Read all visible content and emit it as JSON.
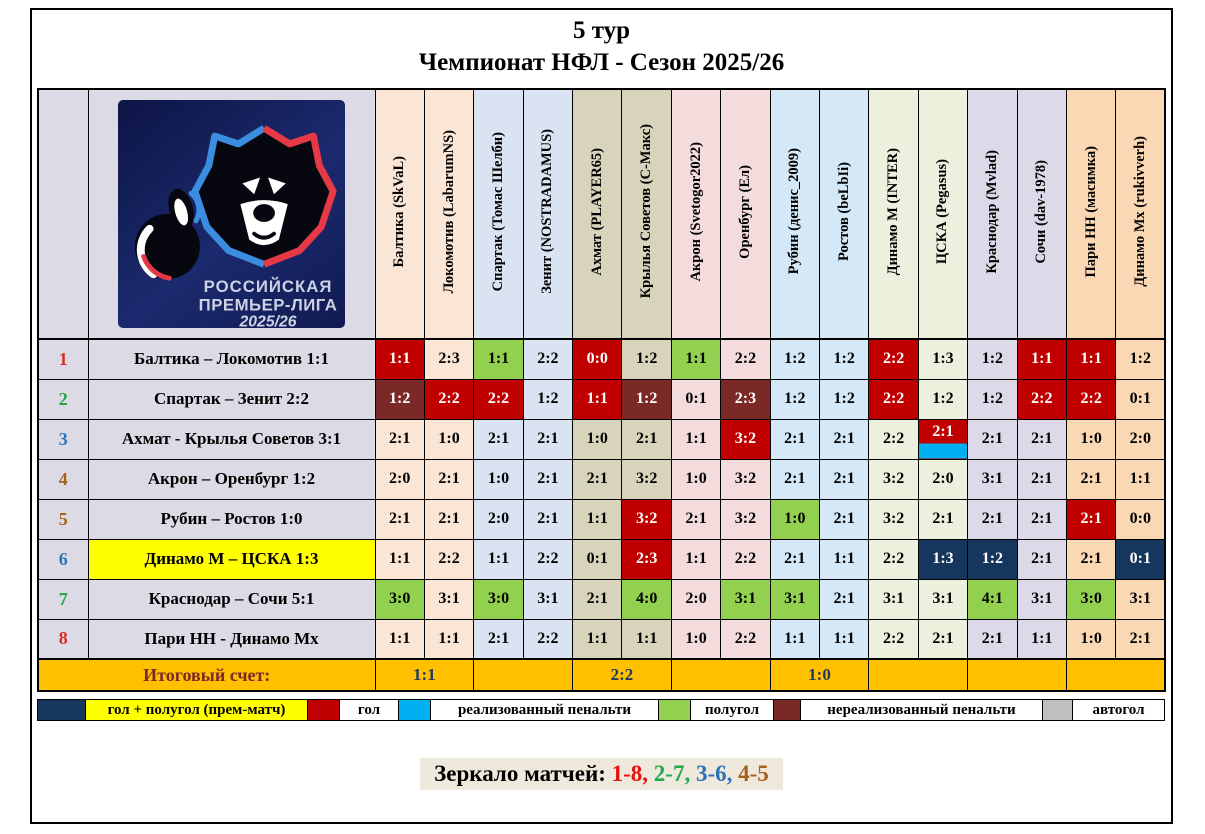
{
  "title": {
    "line1": "5 тур",
    "line2": "Чемпионат НФЛ - Сезон 2025/26"
  },
  "logo": {
    "line1": "РОССИЙСКАЯ",
    "line2": "ПРЕМЬЕР-ЛИГА",
    "line3": "2025/26"
  },
  "colors": {
    "goal_red": "#c00000",
    "halfgoal_green": "#92d050",
    "missed_penalty_maroon": "#7b2927",
    "prem_navy": "#17365d",
    "scored_penalty_cyan": "#00b0f0",
    "prem_match_yellow": "#ffff00",
    "total_row_amber": "#ffc000",
    "owngoal_gray": "#bfbfbf",
    "index_bg": "#dcdbe5"
  },
  "columns": [
    {
      "label": "Балтика (SkVaL)",
      "bg": "#fbe5d5"
    },
    {
      "label": "Локомотив (LabarumNS)",
      "bg": "#fbe5d5"
    },
    {
      "label": "Спартак (Томас Шелби)",
      "bg": "#dae3f2"
    },
    {
      "label": "Зенит (NOSTRADAMUS)",
      "bg": "#dae3f2"
    },
    {
      "label": "Ахмат (PLAYER65)",
      "bg": "#d8d4bb"
    },
    {
      "label": "Крылья Советов (С-Макс)",
      "bg": "#d8d4bb"
    },
    {
      "label": "Акрон (Svetogor2022)",
      "bg": "#f3dcdb"
    },
    {
      "label": "Оренбург (Ел)",
      "bg": "#f3dcdb"
    },
    {
      "label": "Рубин (денис_2009)",
      "bg": "#d5e8f7"
    },
    {
      "label": "Ростов (beLbIi)",
      "bg": "#d5e8f7"
    },
    {
      "label": "Динамо М (INTER)",
      "bg": "#ebf1dd"
    },
    {
      "label": "ЦСКА (Pegasus)",
      "bg": "#ebf1dd"
    },
    {
      "label": "Краснодар (Mvlad)",
      "bg": "#ddd9e8"
    },
    {
      "label": "Сочи (dav-1978)",
      "bg": "#ddd9e8"
    },
    {
      "label": "Пари НН (масимка)",
      "bg": "#fbd8b4"
    },
    {
      "label": "Динамо Мх (rukivverh)",
      "bg": "#fbd8b4"
    }
  ],
  "cell_type_legend": {
    "": "default",
    "R": "goal",
    "G": "halfgoal",
    "M": "missed-penalty",
    "N": "goal-plus-halfgoal-prem",
    "P": "scored-penalty"
  },
  "rows": [
    {
      "n": "1",
      "nc": "#d92b21",
      "match": "Балтика – Локомотив  1:1",
      "hl": false,
      "cells": [
        [
          "1:1",
          "R"
        ],
        [
          "2:3",
          ""
        ],
        [
          "1:1",
          "G"
        ],
        [
          "2:2",
          ""
        ],
        [
          "0:0",
          "R"
        ],
        [
          "1:2",
          ""
        ],
        [
          "1:1",
          "G"
        ],
        [
          "2:2",
          ""
        ],
        [
          "1:2",
          ""
        ],
        [
          "1:2",
          ""
        ],
        [
          "2:2",
          "R"
        ],
        [
          "1:3",
          ""
        ],
        [
          "1:2",
          ""
        ],
        [
          "1:1",
          "R"
        ],
        [
          "1:1",
          "R"
        ],
        [
          "1:2",
          ""
        ]
      ]
    },
    {
      "n": "2",
      "nc": "#27a348",
      "match": "Спартак – Зенит  2:2",
      "hl": false,
      "cells": [
        [
          "1:2",
          "M"
        ],
        [
          "2:2",
          "R"
        ],
        [
          "2:2",
          "R"
        ],
        [
          "1:2",
          ""
        ],
        [
          "1:1",
          "R"
        ],
        [
          "1:2",
          "M"
        ],
        [
          "0:1",
          ""
        ],
        [
          "2:3",
          "M"
        ],
        [
          "1:2",
          ""
        ],
        [
          "1:2",
          ""
        ],
        [
          "2:2",
          "R"
        ],
        [
          "1:2",
          ""
        ],
        [
          "1:2",
          ""
        ],
        [
          "2:2",
          "R"
        ],
        [
          "2:2",
          "R"
        ],
        [
          "0:1",
          ""
        ]
      ]
    },
    {
      "n": "3",
      "nc": "#2e74b5",
      "match": "Ахмат - Крылья Советов  3:1",
      "hl": false,
      "cells": [
        [
          "2:1",
          ""
        ],
        [
          "1:0",
          ""
        ],
        [
          "2:1",
          ""
        ],
        [
          "2:1",
          ""
        ],
        [
          "1:0",
          ""
        ],
        [
          "2:1",
          ""
        ],
        [
          "1:1",
          ""
        ],
        [
          "3:2",
          "R"
        ],
        [
          "2:1",
          ""
        ],
        [
          "2:1",
          ""
        ],
        [
          "2:2",
          ""
        ],
        [
          "2:1",
          "P"
        ],
        [
          "2:1",
          ""
        ],
        [
          "2:1",
          ""
        ],
        [
          "1:0",
          ""
        ],
        [
          "2:0",
          ""
        ]
      ]
    },
    {
      "n": "4",
      "nc": "#a5621c",
      "match": "Акрон – Оренбург  1:2",
      "hl": false,
      "cells": [
        [
          "2:0",
          ""
        ],
        [
          "2:1",
          ""
        ],
        [
          "1:0",
          ""
        ],
        [
          "2:1",
          ""
        ],
        [
          "2:1",
          ""
        ],
        [
          "3:2",
          ""
        ],
        [
          "1:0",
          ""
        ],
        [
          "3:2",
          ""
        ],
        [
          "2:1",
          ""
        ],
        [
          "2:1",
          ""
        ],
        [
          "3:2",
          ""
        ],
        [
          "2:0",
          ""
        ],
        [
          "3:1",
          ""
        ],
        [
          "2:1",
          ""
        ],
        [
          "2:1",
          ""
        ],
        [
          "1:1",
          ""
        ]
      ]
    },
    {
      "n": "5",
      "nc": "#a5621c",
      "match": "Рубин – Ростов  1:0",
      "hl": false,
      "cells": [
        [
          "2:1",
          ""
        ],
        [
          "2:1",
          ""
        ],
        [
          "2:0",
          ""
        ],
        [
          "2:1",
          ""
        ],
        [
          "1:1",
          ""
        ],
        [
          "3:2",
          "R"
        ],
        [
          "2:1",
          ""
        ],
        [
          "3:2",
          ""
        ],
        [
          "1:0",
          "G"
        ],
        [
          "2:1",
          ""
        ],
        [
          "3:2",
          ""
        ],
        [
          "2:1",
          ""
        ],
        [
          "2:1",
          ""
        ],
        [
          "2:1",
          ""
        ],
        [
          "2:1",
          "R"
        ],
        [
          "0:0",
          ""
        ]
      ]
    },
    {
      "n": "6",
      "nc": "#2e74b5",
      "match": "Динамо М – ЦСКА  1:3",
      "hl": true,
      "cells": [
        [
          "1:1",
          ""
        ],
        [
          "2:2",
          ""
        ],
        [
          "1:1",
          ""
        ],
        [
          "2:2",
          ""
        ],
        [
          "0:1",
          ""
        ],
        [
          "2:3",
          "R"
        ],
        [
          "1:1",
          ""
        ],
        [
          "2:2",
          ""
        ],
        [
          "2:1",
          ""
        ],
        [
          "1:1",
          ""
        ],
        [
          "2:2",
          ""
        ],
        [
          "1:3",
          "N"
        ],
        [
          "1:2",
          "N"
        ],
        [
          "2:1",
          ""
        ],
        [
          "2:1",
          ""
        ],
        [
          "0:1",
          "N"
        ]
      ]
    },
    {
      "n": "7",
      "nc": "#27a348",
      "match": "Краснодар – Сочи  5:1",
      "hl": false,
      "cells": [
        [
          "3:0",
          "G"
        ],
        [
          "3:1",
          ""
        ],
        [
          "3:0",
          "G"
        ],
        [
          "3:1",
          ""
        ],
        [
          "2:1",
          ""
        ],
        [
          "4:0",
          "G"
        ],
        [
          "2:0",
          ""
        ],
        [
          "3:1",
          "G"
        ],
        [
          "3:1",
          "G"
        ],
        [
          "2:1",
          ""
        ],
        [
          "3:1",
          ""
        ],
        [
          "3:1",
          ""
        ],
        [
          "4:1",
          "G"
        ],
        [
          "3:1",
          ""
        ],
        [
          "3:0",
          "G"
        ],
        [
          "3:1",
          ""
        ]
      ]
    },
    {
      "n": "8",
      "nc": "#d92b21",
      "match": "Пари НН - Динамо Мх",
      "hl": false,
      "cells": [
        [
          "1:1",
          ""
        ],
        [
          "1:1",
          ""
        ],
        [
          "2:1",
          ""
        ],
        [
          "2:2",
          ""
        ],
        [
          "1:1",
          ""
        ],
        [
          "1:1",
          ""
        ],
        [
          "1:0",
          ""
        ],
        [
          "2:2",
          ""
        ],
        [
          "1:1",
          ""
        ],
        [
          "1:1",
          ""
        ],
        [
          "2:2",
          ""
        ],
        [
          "2:1",
          ""
        ],
        [
          "2:1",
          ""
        ],
        [
          "1:1",
          ""
        ],
        [
          "1:0",
          ""
        ],
        [
          "2:1",
          ""
        ]
      ]
    }
  ],
  "total": {
    "label": "Итоговый счет:",
    "values": [
      "1:1",
      "",
      "2:2",
      "",
      "1:0",
      "",
      "",
      ""
    ]
  },
  "legend": [
    {
      "color": "#17365d",
      "label": "гол + полугол  (прем-матч)",
      "label_bg": "#ffff00"
    },
    {
      "color": "#c00000",
      "label": "гол",
      "label_bg": "#ffffff"
    },
    {
      "color": "#00b0f0",
      "label": "реализованный  пенальти",
      "label_bg": "#ffffff"
    },
    {
      "color": "#92d050",
      "label": "полугол",
      "label_bg": "#ffffff"
    },
    {
      "color": "#7b2927",
      "label": "нереализованный пенальти",
      "label_bg": "#ffffff"
    },
    {
      "color": "#bfbfbf",
      "label": "автогол",
      "label_bg": "#ffffff"
    }
  ],
  "mirror": {
    "prefix": "Зеркало матчей:",
    "pairs": [
      {
        "text": "1-8",
        "color": "#e8100c"
      },
      {
        "text": "2-7",
        "color": "#21aa4d"
      },
      {
        "text": "3-6",
        "color": "#2d71b8"
      },
      {
        "text": "4-5",
        "color": "#a5621c"
      }
    ]
  }
}
